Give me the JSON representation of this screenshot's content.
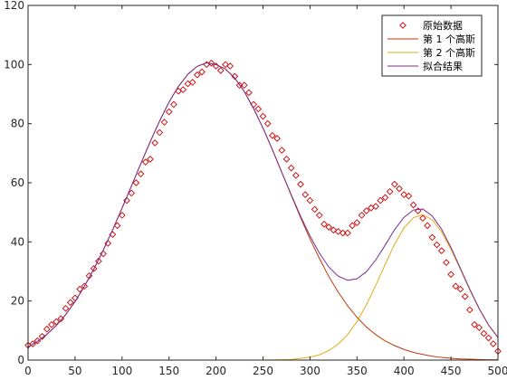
{
  "chart_data": {
    "type": "scatter",
    "title": "",
    "xlabel": "",
    "ylabel": "",
    "xlim": [
      0,
      500
    ],
    "ylim": [
      0,
      120
    ],
    "xticks": [
      0,
      50,
      100,
      150,
      200,
      250,
      300,
      350,
      400,
      450,
      500
    ],
    "yticks": [
      0,
      20,
      40,
      60,
      80,
      100,
      120
    ],
    "grid": false,
    "legend_position": "top-right",
    "series": [
      {
        "name": "原始数据",
        "kind": "markers",
        "marker": "diamond",
        "color": "#cc0000",
        "x": [
          0,
          5,
          10,
          15,
          20,
          25,
          30,
          35,
          40,
          45,
          50,
          55,
          60,
          65,
          70,
          75,
          80,
          85,
          90,
          95,
          100,
          105,
          110,
          115,
          120,
          125,
          130,
          135,
          140,
          145,
          150,
          155,
          160,
          165,
          170,
          175,
          180,
          185,
          190,
          195,
          200,
          205,
          210,
          215,
          220,
          225,
          230,
          235,
          240,
          245,
          250,
          255,
          260,
          265,
          270,
          275,
          280,
          285,
          290,
          295,
          300,
          305,
          310,
          315,
          320,
          325,
          330,
          335,
          340,
          345,
          350,
          355,
          360,
          365,
          370,
          375,
          380,
          385,
          390,
          395,
          400,
          405,
          410,
          415,
          420,
          425,
          430,
          435,
          440,
          445,
          450,
          455,
          460,
          465,
          470,
          475,
          480,
          485,
          490,
          495,
          500
        ],
        "y": [
          5,
          5.5,
          6.5,
          8,
          10.5,
          12,
          13,
          14,
          17.5,
          19.5,
          21,
          24,
          25,
          28.5,
          31,
          33.5,
          36,
          39.5,
          42.5,
          45.5,
          49,
          54,
          56.5,
          60,
          63,
          67,
          68,
          73.5,
          77,
          80.5,
          84,
          86.5,
          91,
          91.5,
          93.5,
          94,
          96.5,
          97.5,
          100,
          100.5,
          99.5,
          98,
          100,
          99.5,
          96,
          93,
          93,
          90.5,
          86.5,
          85,
          82.5,
          80,
          76,
          75,
          71,
          68,
          65,
          62.5,
          59.5,
          56,
          54,
          51,
          49,
          46,
          45,
          44,
          43.5,
          43,
          43,
          45.5,
          46.5,
          49,
          50.5,
          51.5,
          52,
          54,
          55,
          57,
          59.5,
          58,
          56,
          55.5,
          52.5,
          50.5,
          48,
          45.5,
          41.5,
          39,
          37,
          33,
          29,
          25,
          24,
          21.5,
          17,
          12,
          11,
          9,
          7.5,
          5.5,
          3
        ]
      },
      {
        "name": "第 1 个高斯",
        "kind": "line",
        "color": "#c0390b",
        "x": [
          0,
          10,
          20,
          30,
          40,
          50,
          60,
          70,
          80,
          90,
          100,
          110,
          120,
          130,
          140,
          150,
          160,
          170,
          180,
          190,
          200,
          210,
          220,
          230,
          240,
          250,
          260,
          270,
          280,
          290,
          300,
          310,
          320,
          330,
          340,
          350,
          360,
          370,
          380,
          390,
          400,
          410,
          420,
          430,
          440,
          450,
          460,
          470,
          480,
          490,
          500
        ],
        "y": [
          4.5,
          6.3,
          8.7,
          11.7,
          15.4,
          19.8,
          25,
          30.8,
          37.2,
          44.1,
          51.4,
          58.9,
          66.5,
          73.9,
          80.9,
          87.3,
          92.6,
          96.7,
          99.4,
          100.6,
          100,
          98.5,
          95.4,
          90.9,
          85.1,
          78.5,
          71.2,
          63.5,
          55.8,
          48.2,
          41,
          34.4,
          28.3,
          23,
          18.4,
          14.5,
          11.2,
          8.6,
          6.5,
          4.9,
          3.6,
          2.6,
          1.9,
          1.3,
          0.9,
          0.6,
          0.4,
          0.3,
          0.2,
          0.1,
          0.1
        ]
      },
      {
        "name": "第 2 个高斯",
        "kind": "line",
        "color": "#e6a817",
        "x": [
          165,
          200,
          250,
          280,
          300,
          310,
          320,
          330,
          340,
          350,
          360,
          370,
          380,
          390,
          400,
          410,
          420,
          430,
          440,
          450,
          460,
          470,
          480,
          490,
          500
        ],
        "y": [
          0,
          0,
          0,
          0.2,
          1,
          1.8,
          3.2,
          5.4,
          8.6,
          13,
          18.7,
          25.3,
          32.4,
          39.2,
          44.7,
          48.2,
          49.2,
          47.5,
          43.4,
          37.5,
          30.7,
          23.7,
          17.3,
          11.8,
          7.6
        ]
      },
      {
        "name": "拟合结果",
        "kind": "line",
        "color": "#7b2d8e",
        "x": [
          0,
          10,
          20,
          30,
          40,
          50,
          60,
          70,
          80,
          90,
          100,
          110,
          120,
          130,
          140,
          150,
          160,
          170,
          180,
          190,
          200,
          210,
          220,
          230,
          240,
          250,
          260,
          270,
          280,
          290,
          300,
          310,
          320,
          330,
          340,
          350,
          360,
          370,
          380,
          390,
          400,
          410,
          420,
          430,
          440,
          450,
          460,
          470,
          480,
          490,
          500
        ],
        "y": [
          4.5,
          6.3,
          8.7,
          11.7,
          15.4,
          19.8,
          25,
          30.8,
          37.2,
          44.1,
          51.4,
          58.9,
          66.5,
          73.9,
          80.9,
          87.3,
          92.6,
          96.7,
          99.4,
          100.6,
          100,
          98.5,
          95.4,
          90.9,
          85.1,
          78.5,
          71.2,
          63.5,
          56,
          48.7,
          42,
          36.2,
          31.5,
          28.4,
          27,
          27.5,
          29.9,
          33.9,
          38.9,
          44.1,
          48.3,
          50.8,
          51.1,
          48.8,
          44.3,
          38.1,
          31.1,
          24,
          17.5,
          11.9,
          7.7
        ]
      }
    ]
  }
}
